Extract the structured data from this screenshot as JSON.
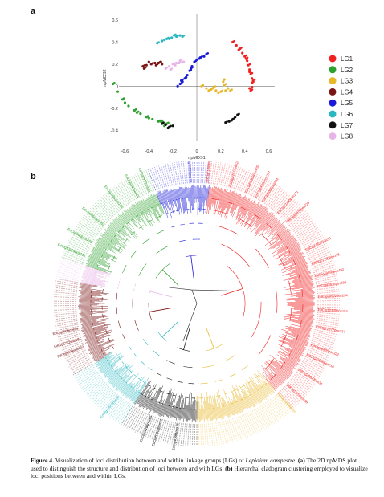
{
  "panel_a": {
    "label": "a",
    "chart_data": {
      "type": "scatter",
      "xlabel": "npMDS1",
      "ylabel": "npMDS2",
      "xlim": [
        -0.65,
        0.65
      ],
      "ylim": [
        -0.5,
        0.65
      ],
      "xticks": [
        "-0.6",
        "-0.4",
        "-0.2",
        "0",
        "0.2",
        "0.4",
        "0.6"
      ],
      "yticks": [
        "0.6",
        "0.4",
        "0.2",
        "0",
        "-0.2",
        "-0.4"
      ],
      "grid": false,
      "legend_placement": "right",
      "series": [
        {
          "name": "LG1",
          "color": "#f02020",
          "points": [
            [
              0.3,
              0.4
            ],
            [
              0.33,
              0.37
            ],
            [
              0.36,
              0.34
            ],
            [
              0.38,
              0.3
            ],
            [
              0.4,
              0.27
            ],
            [
              0.42,
              0.23
            ],
            [
              0.43,
              0.19
            ],
            [
              0.44,
              0.15
            ],
            [
              0.45,
              0.11
            ],
            [
              0.46,
              0.07
            ],
            [
              0.46,
              0.03
            ],
            [
              0.46,
              -0.01
            ],
            [
              0.45,
              -0.04
            ],
            [
              0.35,
              0.33
            ],
            [
              0.41,
              0.25
            ],
            [
              0.44,
              0.13
            ],
            [
              0.47,
              0.05
            ],
            [
              0.44,
              -0.02
            ]
          ]
        },
        {
          "name": "LG2",
          "color": "#2ea02e",
          "points": [
            [
              -0.7,
              0.02
            ],
            [
              -0.66,
              -0.05
            ],
            [
              -0.62,
              -0.12
            ],
            [
              -0.57,
              -0.18
            ],
            [
              -0.52,
              -0.22
            ],
            [
              -0.47,
              -0.25
            ],
            [
              -0.42,
              -0.28
            ],
            [
              -0.37,
              -0.3
            ],
            [
              -0.32,
              -0.32
            ],
            [
              -0.28,
              -0.33
            ],
            [
              -0.25,
              -0.34
            ],
            [
              -0.6,
              -0.15
            ],
            [
              -0.5,
              -0.24
            ],
            [
              -0.4,
              -0.29
            ],
            [
              -0.3,
              -0.32
            ],
            [
              -0.27,
              -0.36
            ]
          ]
        },
        {
          "name": "LG3",
          "color": "#e8b82a",
          "points": [
            [
              0.04,
              0.0
            ],
            [
              0.08,
              -0.02
            ],
            [
              0.12,
              -0.03
            ],
            [
              0.16,
              -0.04
            ],
            [
              0.2,
              -0.05
            ],
            [
              0.24,
              -0.04
            ],
            [
              0.28,
              -0.04
            ],
            [
              0.22,
              0.04
            ],
            [
              0.23,
              0.01
            ],
            [
              0.18,
              -0.06
            ],
            [
              0.1,
              -0.04
            ],
            [
              0.26,
              -0.02
            ],
            [
              0.14,
              -0.01
            ],
            [
              0.23,
              0.06
            ]
          ]
        },
        {
          "name": "LG4",
          "color": "#7a1515",
          "points": [
            [
              -0.45,
              0.18
            ],
            [
              -0.42,
              0.19
            ],
            [
              -0.38,
              0.2
            ],
            [
              -0.35,
              0.21
            ],
            [
              -0.32,
              0.21
            ],
            [
              -0.29,
              0.2
            ],
            [
              -0.44,
              0.16
            ],
            [
              -0.4,
              0.22
            ],
            [
              -0.34,
              0.19
            ],
            [
              -0.3,
              0.22
            ]
          ]
        },
        {
          "name": "LG5",
          "color": "#1a1ad8",
          "points": [
            [
              0.08,
              0.29
            ],
            [
              0.06,
              0.27
            ],
            [
              0.03,
              0.26
            ],
            [
              0.0,
              0.24
            ],
            [
              -0.02,
              0.22
            ],
            [
              -0.04,
              0.18
            ],
            [
              -0.06,
              0.14
            ],
            [
              -0.08,
              0.1
            ],
            [
              -0.1,
              0.07
            ],
            [
              -0.12,
              0.04
            ],
            [
              -0.14,
              0.02
            ],
            [
              -0.16,
              0.0
            ],
            [
              -0.05,
              0.16
            ],
            [
              -0.09,
              0.08
            ],
            [
              -0.13,
              0.05
            ],
            [
              0.02,
              0.25
            ]
          ]
        },
        {
          "name": "LG6",
          "color": "#2ab8c0",
          "points": [
            [
              -0.33,
              0.39
            ],
            [
              -0.29,
              0.41
            ],
            [
              -0.25,
              0.43
            ],
            [
              -0.21,
              0.44
            ],
            [
              -0.17,
              0.45
            ],
            [
              -0.14,
              0.46
            ],
            [
              -0.12,
              0.45
            ],
            [
              -0.27,
              0.42
            ],
            [
              -0.19,
              0.46
            ],
            [
              -0.23,
              0.43
            ]
          ]
        },
        {
          "name": "LG7",
          "color": "#111111",
          "points": [
            [
              -0.29,
              -0.34
            ],
            [
              -0.26,
              -0.35
            ],
            [
              -0.23,
              -0.37
            ],
            [
              -0.2,
              -0.36
            ],
            [
              0.24,
              -0.33
            ],
            [
              0.27,
              -0.32
            ],
            [
              0.3,
              -0.3
            ],
            [
              0.32,
              -0.28
            ],
            [
              0.34,
              -0.26
            ],
            [
              0.29,
              -0.31
            ],
            [
              -0.24,
              -0.38
            ]
          ]
        },
        {
          "name": "LG8",
          "color": "#e6b4e6",
          "points": [
            [
              -0.26,
              0.16
            ],
            [
              -0.23,
              0.18
            ],
            [
              -0.2,
              0.2
            ],
            [
              -0.17,
              0.21
            ],
            [
              -0.14,
              0.23
            ],
            [
              -0.11,
              0.22
            ],
            [
              -0.22,
              0.15
            ],
            [
              -0.18,
              0.19
            ],
            [
              -0.15,
              0.21
            ]
          ]
        }
      ]
    }
  },
  "panel_b": {
    "label": "b",
    "chart_data": {
      "type": "dendrogram",
      "layout": "circular",
      "sectors": [
        {
          "group": "LG1",
          "color": "#f02020",
          "start_deg": 84,
          "end_deg": -48
        },
        {
          "group": "LG3",
          "color": "#e8b82a",
          "start_deg": -48,
          "end_deg": -90
        },
        {
          "group": "LG7",
          "color": "#111111",
          "start_deg": -90,
          "end_deg": -122
        },
        {
          "group": "LG6",
          "color": "#2ab8c0",
          "start_deg": -122,
          "end_deg": -150
        },
        {
          "group": "LG4",
          "color": "#7a1515",
          "start_deg": -150,
          "end_deg": -190
        },
        {
          "group": "LG8",
          "color": "#e6b4e6",
          "start_deg": -190,
          "end_deg": -199
        },
        {
          "group": "LG2",
          "color": "#2ea02e",
          "start_deg": -199,
          "end_deg": -250
        },
        {
          "group": "LG5",
          "color": "#1a1ad8",
          "start_deg": -250,
          "end_deg": -276
        }
      ],
      "leaf_labels": [
        {
          "text": "EdCtg55900pos79",
          "color": "#1a1ad8",
          "angle": 93
        },
        {
          "text": "EdCtg71460pos49",
          "color": "#f02020",
          "angle": 85
        },
        {
          "text": "EdCtg27577pos244",
          "color": "#f02020",
          "angle": 74
        },
        {
          "text": "EdCtg59903pos405",
          "color": "#f02020",
          "angle": 66
        },
        {
          "text": "EdCtg14500pos277",
          "color": "#f02020",
          "angle": 61
        },
        {
          "text": "EdCtg2065pos584",
          "color": "#f02020",
          "angle": 57
        },
        {
          "text": "EdCtg71490pos171",
          "color": "#f02020",
          "angle": 48
        },
        {
          "text": "EdCtg35870pos229",
          "color": "#f02020",
          "angle": 42
        },
        {
          "text": "EdCtg10617pos33",
          "color": "#f02020",
          "angle": 26
        },
        {
          "text": "EdCtg21790pos378",
          "color": "#f02020",
          "angle": 19
        },
        {
          "text": "EdCtg40955pos492",
          "color": "#f02020",
          "angle": 13
        },
        {
          "text": "EdCtg43638pos389",
          "color": "#f02020",
          "angle": 8
        },
        {
          "text": "EdCtg30522pos254",
          "color": "#f02020",
          "angle": 3
        },
        {
          "text": "EdCtg12339pos154",
          "color": "#f02020",
          "angle": -3
        },
        {
          "text": "EdCtg12672pos237",
          "color": "#f02020",
          "angle": -11
        },
        {
          "text": "EdCtg16880pos322",
          "color": "#f02020",
          "angle": -20
        },
        {
          "text": "EdCtg20638pos210",
          "color": "#f02020",
          "angle": -25
        },
        {
          "text": "EdCtg29800pos34",
          "color": "#f02020",
          "angle": -33
        },
        {
          "text": "EdCtg11702pos88",
          "color": "#f02020",
          "angle": -42
        },
        {
          "text": "EdCtg12939pos0",
          "color": "#e8b82a",
          "angle": -48
        },
        {
          "text": "EdCtg40481pos76",
          "color": "#111111",
          "angle": -99
        },
        {
          "text": "EdCtg57309pos54",
          "color": "#111111",
          "angle": -107
        },
        {
          "text": "EdCtg12255pos65",
          "color": "#111111",
          "angle": -112
        },
        {
          "text": "EdCtg12555pos58",
          "color": "#2ab8c0",
          "angle": -130
        },
        {
          "text": "EdCtg9604pos422",
          "color": "#7a1515",
          "angle": -159
        },
        {
          "text": "EdCtg1722pos284",
          "color": "#7a1515",
          "angle": -163
        },
        {
          "text": "EdCtg2606pos99",
          "color": "#7a1515",
          "angle": -168
        },
        {
          "text": "EdCtg43409pos240",
          "color": "#2ea02e",
          "angle": -203
        },
        {
          "text": "EdCtg9468pos496",
          "color": "#2ea02e",
          "angle": -210
        },
        {
          "text": "EdCtg6950pos401",
          "color": "#2ea02e",
          "angle": -220
        },
        {
          "text": "EdCtg2391pos198",
          "color": "#2ea02e",
          "angle": -232
        },
        {
          "text": "EdCtg5840pos69",
          "color": "#2ea02e",
          "angle": -241
        },
        {
          "text": "EdCtg7910pos88",
          "color": "#2ea02e",
          "angle": -247
        }
      ]
    }
  },
  "caption": {
    "figure_label": "Figure 4.",
    "title_before_species": "Visualization of loci distribution between and within linkage groups (LGs) of",
    "species": "Lepidium campestre",
    "title_end": ".",
    "part_a_marker": "(a)",
    "part_a_text": "The 2D npMDS plot used to distinguish the structure and distribution of loci between and with LGs.",
    "part_b_marker": "(b)",
    "part_b_text": "Hierarchal cladogram clustering employed to visualize loci positions between and within LGs."
  }
}
